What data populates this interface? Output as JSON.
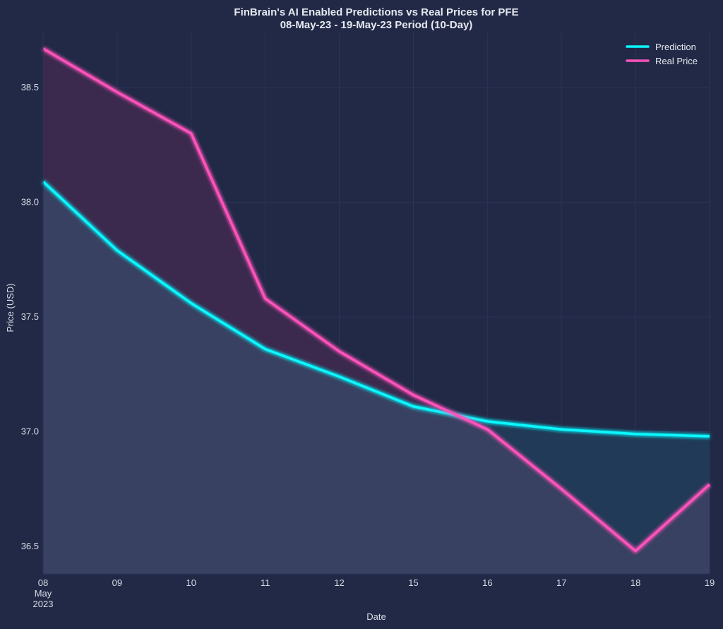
{
  "chart_data": {
    "type": "line",
    "title_line1": "FinBrain's AI Enabled Predictions vs Real Prices for PFE",
    "title_line2": "08-May-23 - 19-May-23 Period (10-Day)",
    "xlabel": "Date",
    "ylabel": "Price (USD)",
    "x_tick_labels": [
      "08",
      "09",
      "10",
      "11",
      "12",
      "15",
      "16",
      "17",
      "18",
      "19"
    ],
    "x_sub_label_1": "May",
    "x_sub_label_2": "2023",
    "x": [
      "2023-05-08",
      "2023-05-09",
      "2023-05-10",
      "2023-05-11",
      "2023-05-12",
      "2023-05-15",
      "2023-05-16",
      "2023-05-17",
      "2023-05-18",
      "2023-05-19"
    ],
    "y_ticks": [
      "36.5",
      "37.0",
      "37.5",
      "38.0",
      "38.5"
    ],
    "ylim": [
      36.38,
      38.74
    ],
    "grid": true,
    "legend_position": "top-right",
    "series": [
      {
        "name": "Prediction",
        "color": "#08F7FE",
        "values": [
          38.09,
          37.79,
          37.56,
          37.36,
          37.24,
          37.11,
          37.045,
          37.01,
          36.99,
          36.98
        ]
      },
      {
        "name": "Real Price",
        "color": "#FE53BB",
        "values": [
          38.67,
          38.48,
          38.3,
          37.58,
          37.35,
          37.16,
          37.01,
          36.75,
          36.48,
          36.77
        ]
      }
    ]
  }
}
